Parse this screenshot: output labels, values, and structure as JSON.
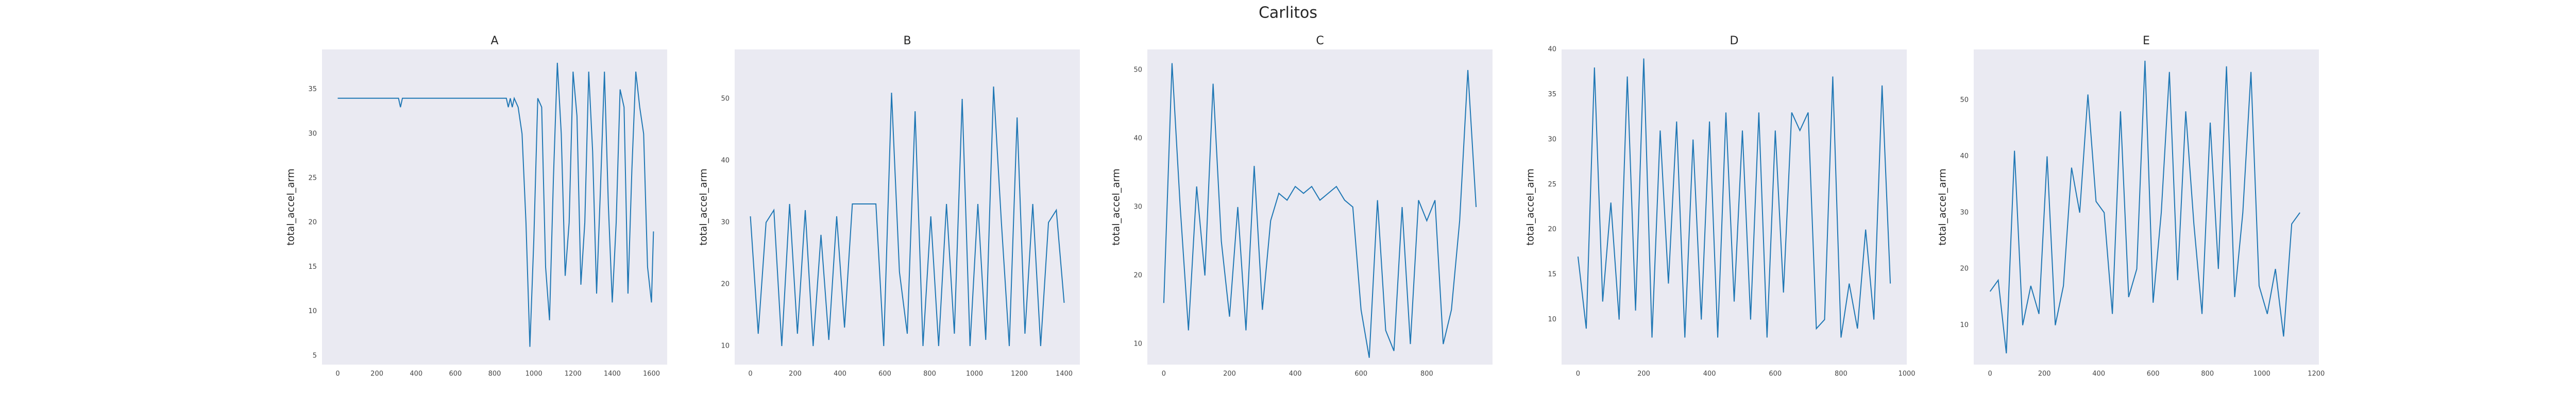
{
  "title": "Carlitos",
  "chart_data": [
    {
      "type": "line",
      "title": "A",
      "y_label": "total_accel_arm",
      "color": "#1f77b4",
      "grid": false,
      "x": [
        0,
        100,
        200,
        300,
        310,
        320,
        330,
        340,
        400,
        500,
        600,
        700,
        800,
        860,
        870,
        880,
        890,
        900,
        920,
        940,
        960,
        980,
        1000,
        1020,
        1040,
        1060,
        1080,
        1100,
        1120,
        1140,
        1160,
        1180,
        1200,
        1220,
        1240,
        1260,
        1280,
        1300,
        1320,
        1340,
        1360,
        1380,
        1400,
        1420,
        1440,
        1460,
        1480,
        1500,
        1520,
        1540,
        1560,
        1580,
        1600,
        1610
      ],
      "values": [
        34,
        34,
        34,
        34,
        34,
        33,
        34,
        34,
        34,
        34,
        34,
        34,
        34,
        34,
        33,
        34,
        33,
        34,
        33,
        30,
        20,
        6,
        18,
        34,
        33,
        15,
        9,
        25,
        38,
        30,
        14,
        20,
        37,
        32,
        13,
        20,
        37,
        28,
        12,
        24,
        37,
        22,
        11,
        20,
        35,
        33,
        12,
        26,
        37,
        33,
        30,
        15,
        11,
        19
      ],
      "xlim": [
        -80,
        1680
      ],
      "xticks": [
        0,
        200,
        400,
        600,
        800,
        1000,
        1200,
        1400,
        1600
      ],
      "ylim": [
        4,
        39.5
      ],
      "yticks": [
        5,
        10,
        15,
        20,
        25,
        30,
        35
      ]
    },
    {
      "type": "line",
      "title": "B",
      "y_label": "total_accel_arm",
      "color": "#1f77b4",
      "grid": false,
      "x": [
        0,
        35,
        70,
        105,
        140,
        175,
        210,
        245,
        280,
        315,
        350,
        385,
        420,
        455,
        490,
        525,
        560,
        595,
        630,
        665,
        700,
        735,
        770,
        805,
        840,
        875,
        910,
        945,
        980,
        1015,
        1050,
        1085,
        1120,
        1155,
        1190,
        1225,
        1260,
        1295,
        1330,
        1365,
        1400
      ],
      "values": [
        31,
        12,
        30,
        32,
        10,
        33,
        12,
        32,
        10,
        28,
        11,
        31,
        13,
        33,
        33,
        33,
        33,
        10,
        51,
        22,
        12,
        48,
        10,
        31,
        10,
        33,
        12,
        50,
        10,
        33,
        11,
        52,
        30,
        10,
        47,
        12,
        33,
        10,
        30,
        32,
        17
      ],
      "xlim": [
        -70,
        1470
      ],
      "xticks": [
        0,
        200,
        400,
        600,
        800,
        1000,
        1200,
        1400
      ],
      "ylim": [
        7,
        58
      ],
      "yticks": [
        10,
        20,
        30,
        40,
        50
      ]
    },
    {
      "type": "line",
      "title": "C",
      "y_label": "total_accel_arm",
      "color": "#1f77b4",
      "grid": false,
      "x": [
        0,
        25,
        50,
        75,
        100,
        125,
        150,
        175,
        200,
        225,
        250,
        275,
        300,
        325,
        350,
        375,
        400,
        425,
        450,
        475,
        500,
        525,
        550,
        575,
        600,
        625,
        650,
        675,
        700,
        725,
        750,
        775,
        800,
        825,
        850,
        875,
        900,
        925,
        950
      ],
      "values": [
        16,
        51,
        30,
        12,
        33,
        20,
        48,
        25,
        14,
        30,
        12,
        36,
        15,
        28,
        32,
        31,
        33,
        32,
        33,
        31,
        32,
        33,
        31,
        30,
        15,
        8,
        31,
        12,
        9,
        30,
        10,
        31,
        28,
        31,
        10,
        15,
        28,
        50,
        30
      ],
      "xlim": [
        -50,
        1000
      ],
      "xticks": [
        0,
        200,
        400,
        600,
        800
      ],
      "ylim": [
        7,
        53
      ],
      "yticks": [
        10,
        20,
        30,
        40,
        50
      ]
    },
    {
      "type": "line",
      "title": "D",
      "y_label": "total_accel_arm",
      "color": "#1f77b4",
      "grid": false,
      "x": [
        0,
        25,
        50,
        75,
        100,
        125,
        150,
        175,
        200,
        225,
        250,
        275,
        300,
        325,
        350,
        375,
        400,
        425,
        450,
        475,
        500,
        525,
        550,
        575,
        600,
        625,
        650,
        675,
        700,
        725,
        750,
        775,
        800,
        825,
        850,
        875,
        900,
        925,
        950
      ],
      "values": [
        17,
        9,
        38,
        12,
        23,
        10,
        37,
        11,
        39,
        8,
        31,
        14,
        32,
        8,
        30,
        10,
        32,
        8,
        33,
        12,
        31,
        10,
        33,
        8,
        31,
        13,
        33,
        31,
        33,
        9,
        10,
        37,
        8,
        14,
        9,
        20,
        10,
        36,
        14
      ],
      "xlim": [
        -50,
        1000
      ],
      "xticks": [
        0,
        200,
        400,
        600,
        800,
        1000
      ],
      "ylim": [
        5,
        40
      ],
      "yticks": [
        10,
        15,
        20,
        25,
        30,
        35,
        40
      ]
    },
    {
      "type": "line",
      "title": "E",
      "y_label": "total_accel_arm",
      "color": "#1f77b4",
      "grid": false,
      "x": [
        0,
        30,
        60,
        90,
        120,
        150,
        180,
        210,
        240,
        270,
        300,
        330,
        360,
        390,
        420,
        450,
        480,
        510,
        540,
        570,
        600,
        630,
        660,
        690,
        720,
        750,
        780,
        810,
        840,
        870,
        900,
        930,
        960,
        990,
        1020,
        1050,
        1080,
        1110,
        1140
      ],
      "values": [
        16,
        18,
        5,
        41,
        10,
        17,
        12,
        40,
        10,
        17,
        38,
        30,
        51,
        32,
        30,
        12,
        48,
        15,
        20,
        57,
        14,
        30,
        55,
        18,
        48,
        28,
        12,
        46,
        20,
        56,
        15,
        30,
        55,
        17,
        12,
        20,
        8,
        28,
        30
      ],
      "xlim": [
        -60,
        1210
      ],
      "xticks": [
        0,
        200,
        400,
        600,
        800,
        1000,
        1200
      ],
      "ylim": [
        3,
        59
      ],
      "yticks": [
        10,
        20,
        30,
        40,
        50
      ]
    }
  ]
}
